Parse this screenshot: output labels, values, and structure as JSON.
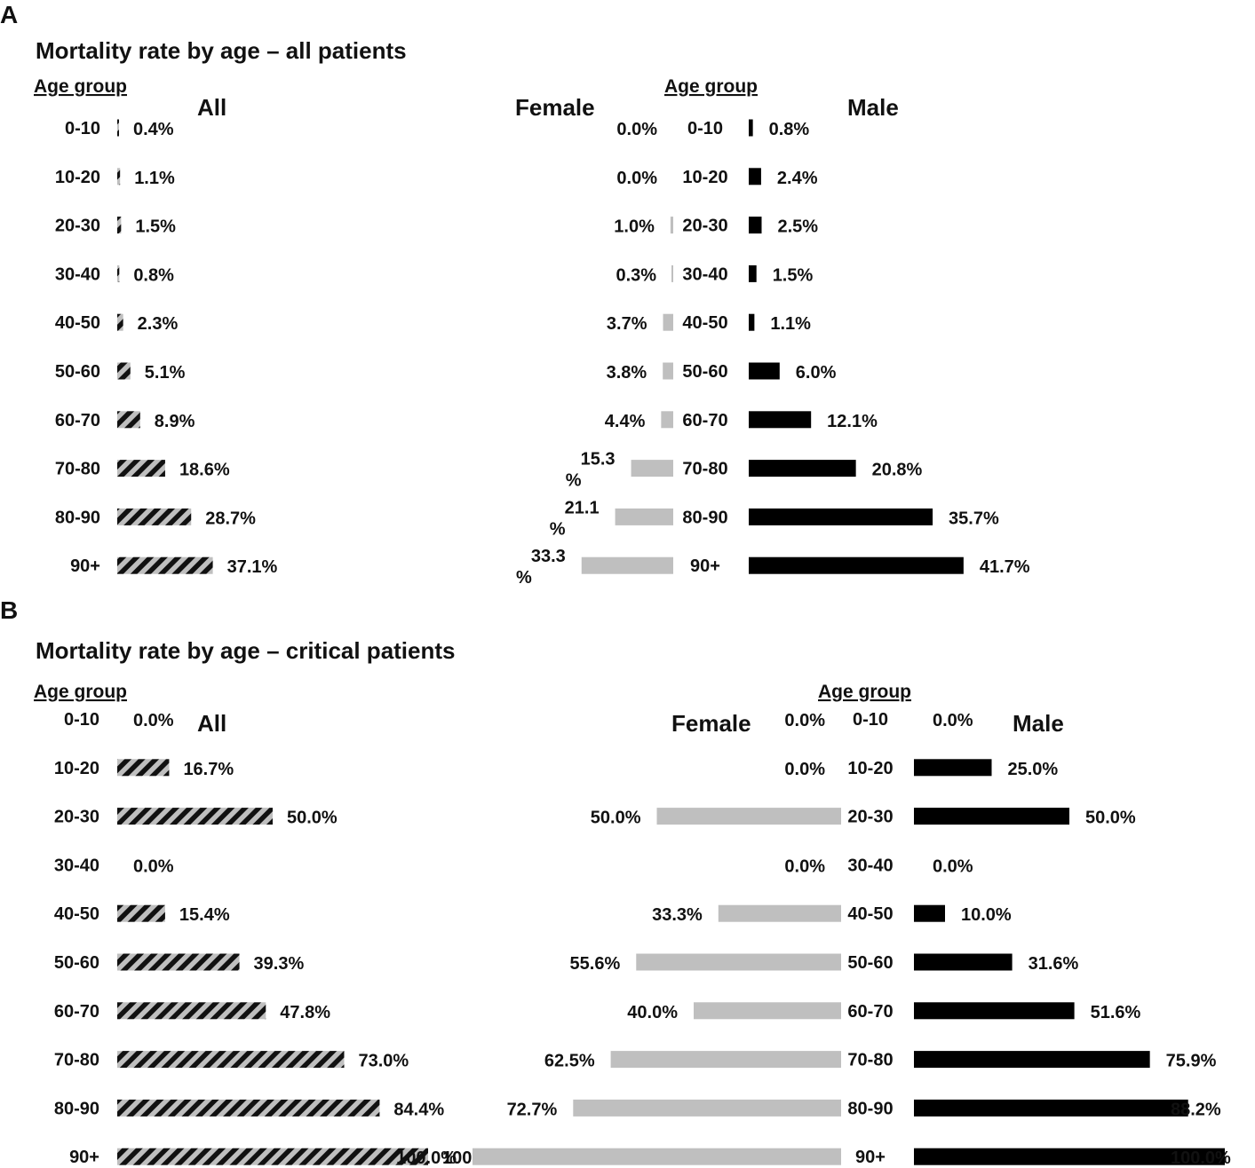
{
  "colors": {
    "all_hatch_dark": "#111111",
    "all_hatch_light": "#bfbfbf",
    "female": "#bfbfbf",
    "male": "#000000"
  },
  "chart_data": [
    {
      "panel": "A",
      "type": "bar",
      "orientation": "horizontal",
      "title": "Mortality rate by age – all patients",
      "age_group_header": "Age group",
      "categories": [
        "0-10",
        "10-20",
        "20-30",
        "30-40",
        "40-50",
        "50-60",
        "60-70",
        "70-80",
        "80-90",
        "90+"
      ],
      "unit": "%",
      "series": [
        {
          "name": "All",
          "values": [
            0.4,
            1.1,
            1.5,
            0.8,
            2.3,
            5.1,
            8.9,
            18.6,
            28.7,
            37.1
          ],
          "labels": [
            "0.4%",
            "1.1%",
            "1.5%",
            "0.8%",
            "2.3%",
            "5.1%",
            "8.9%",
            "18.6%",
            "28.7%",
            "37.1%"
          ]
        },
        {
          "name": "Female",
          "values": [
            0.0,
            0.0,
            1.0,
            0.3,
            3.7,
            3.8,
            4.4,
            15.3,
            21.1,
            33.3
          ],
          "labels": [
            "0.0%",
            "0.0%",
            "1.0%",
            "0.3%",
            "3.7%",
            "3.8%",
            "4.4%",
            "15.3\n%",
            "21.1\n%",
            "33.3\n%"
          ]
        },
        {
          "name": "Male",
          "values": [
            0.8,
            2.4,
            2.5,
            1.5,
            1.1,
            6.0,
            12.1,
            20.8,
            35.7,
            41.7
          ],
          "labels": [
            "0.8%",
            "2.4%",
            "2.5%",
            "1.5%",
            "1.1%",
            "6.0%",
            "12.1%",
            "20.8%",
            "35.7%",
            "41.7%"
          ]
        }
      ]
    },
    {
      "panel": "B",
      "type": "bar",
      "orientation": "horizontal",
      "title": "Mortality rate by age – critical patients",
      "age_group_header": "Age group",
      "categories": [
        "0-10",
        "10-20",
        "20-30",
        "30-40",
        "40-50",
        "50-60",
        "60-70",
        "70-80",
        "80-90",
        "90+"
      ],
      "unit": "%",
      "series": [
        {
          "name": "All",
          "values": [
            0.0,
            16.7,
            50.0,
            0.0,
            15.4,
            39.3,
            47.8,
            73.0,
            84.4,
            100.0
          ],
          "labels": [
            "0.0%",
            "16.7%",
            "50.0%",
            "0.0%",
            "15.4%",
            "39.3%",
            "47.8%",
            "73.0%",
            "84.4%",
            "100.0%"
          ]
        },
        {
          "name": "Female",
          "values": [
            0.0,
            0.0,
            50.0,
            0.0,
            33.3,
            55.6,
            40.0,
            62.5,
            72.7,
            100.0
          ],
          "labels": [
            "0.0%",
            "0.0%",
            "50.0%",
            "0.0%",
            "33.3%",
            "55.6%",
            "40.0%",
            "62.5%",
            "72.7%",
            "100.0%"
          ]
        },
        {
          "name": "Male",
          "values": [
            0.0,
            25.0,
            50.0,
            0.0,
            10.0,
            31.6,
            51.6,
            75.9,
            88.2,
            100.0
          ],
          "labels": [
            "0.0%",
            "25.0%",
            "50.0%",
            "0.0%",
            "10.0%",
            "31.6%",
            "51.6%",
            "75.9%",
            "88.2%",
            "100.0%"
          ]
        }
      ]
    }
  ]
}
